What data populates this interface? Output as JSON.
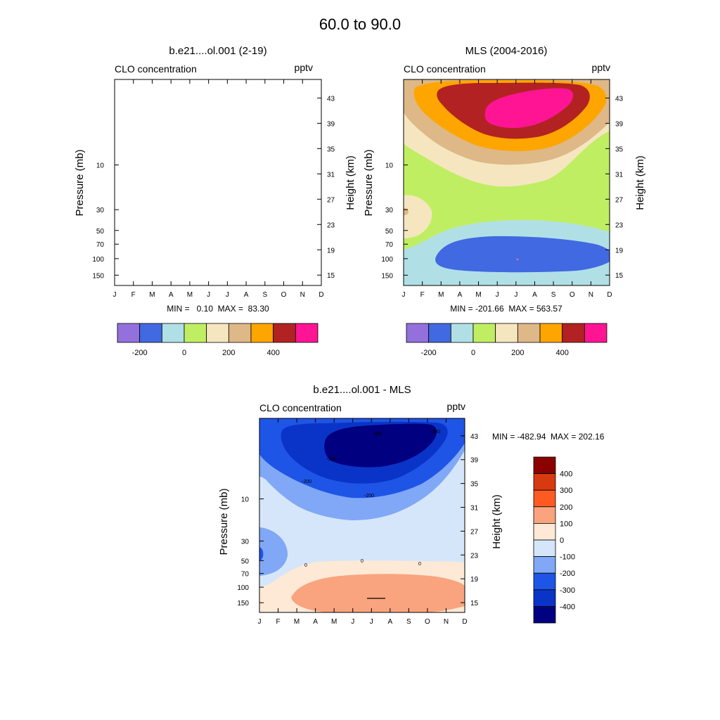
{
  "figure_title": "60.0 to  90.0",
  "chart_data": [
    {
      "type": "contour",
      "title": "b.e21....ol.001 (2-19)",
      "field_label": "CLO concentration",
      "units": "pptv",
      "xlabel": "",
      "ylabel": "Pressure (mb)",
      "ylabel_right": "Height (km)",
      "x_ticks": [
        "J",
        "F",
        "M",
        "A",
        "M",
        "J",
        "J",
        "A",
        "S",
        "O",
        "N",
        "D"
      ],
      "y_ticks": [
        "10",
        "30",
        "50",
        "70",
        "100",
        "150"
      ],
      "height_ticks": [
        "43",
        "39",
        "35",
        "31",
        "27",
        "23",
        "19",
        "15"
      ],
      "stats": "MIN =   0.10  MAX =  83.30",
      "min": 0.1,
      "max": 83.3,
      "note": "empty plot area (no contours drawn)",
      "colorbar": {
        "orientation": "horizontal",
        "levels": [
          -200,
          -100,
          0,
          100,
          200,
          300,
          400,
          500
        ],
        "labels": [
          "-200",
          "0",
          "200",
          "400"
        ],
        "colors": [
          "#9370db",
          "#4169e1",
          "#b0e0e6",
          "#c0ee62",
          "#f5e6c0",
          "#deb887",
          "#ffa500",
          "#b22222",
          "#ff1493"
        ]
      }
    },
    {
      "type": "contour",
      "title": "MLS (2004-2016)",
      "field_label": "CLO concentration",
      "units": "pptv",
      "xlabel": "",
      "ylabel": "Pressure (mb)",
      "ylabel_right": "Height (km)",
      "x_ticks": [
        "J",
        "F",
        "M",
        "A",
        "M",
        "J",
        "J",
        "A",
        "S",
        "O",
        "N",
        "D"
      ],
      "y_ticks": [
        "10",
        "30",
        "50",
        "70",
        "100",
        "150"
      ],
      "height_ticks": [
        "43",
        "39",
        "35",
        "31",
        "27",
        "23",
        "19",
        "15"
      ],
      "stats": "MIN = -201.66  MAX = 563.57",
      "min": -201.66,
      "max": 563.57,
      "colorbar": {
        "orientation": "horizontal",
        "levels": [
          -200,
          -100,
          0,
          100,
          200,
          300,
          400,
          500
        ],
        "labels": [
          "-200",
          "0",
          "200",
          "400"
        ],
        "colors": [
          "#9370db",
          "#4169e1",
          "#b0e0e6",
          "#c0ee62",
          "#f5e6c0",
          "#deb887",
          "#ffa500",
          "#b22222",
          "#ff1493"
        ]
      }
    },
    {
      "type": "contour",
      "title": "b.e21....ol.001 - MLS",
      "field_label": "CLO concentration",
      "units": "pptv",
      "xlabel": "",
      "ylabel": "Pressure (mb)",
      "ylabel_right": "Height (km)",
      "x_ticks": [
        "J",
        "F",
        "M",
        "A",
        "M",
        "J",
        "J",
        "A",
        "S",
        "O",
        "N",
        "D"
      ],
      "y_ticks": [
        "10",
        "30",
        "50",
        "70",
        "100",
        "150"
      ],
      "height_ticks": [
        "43",
        "39",
        "35",
        "31",
        "27",
        "23",
        "19",
        "15"
      ],
      "stats": "MIN = -482.94  MAX = 202.16",
      "min": -482.94,
      "max": 202.16,
      "contour_line_labels": [
        "-400",
        "-300",
        "-300",
        "-200",
        "-200",
        "0",
        "0",
        "0"
      ],
      "colorbar": {
        "orientation": "vertical",
        "labels": [
          "400",
          "300",
          "200",
          "100",
          "0",
          "-100",
          "-200",
          "-300",
          "-400"
        ],
        "colors": [
          "#8b0000",
          "#d83a0f",
          "#ff5a22",
          "#f9a47e",
          "#fde9d6",
          "#d6e6fa",
          "#80a8f6",
          "#1e55e6",
          "#0a34c8",
          "#000080"
        ]
      }
    }
  ]
}
